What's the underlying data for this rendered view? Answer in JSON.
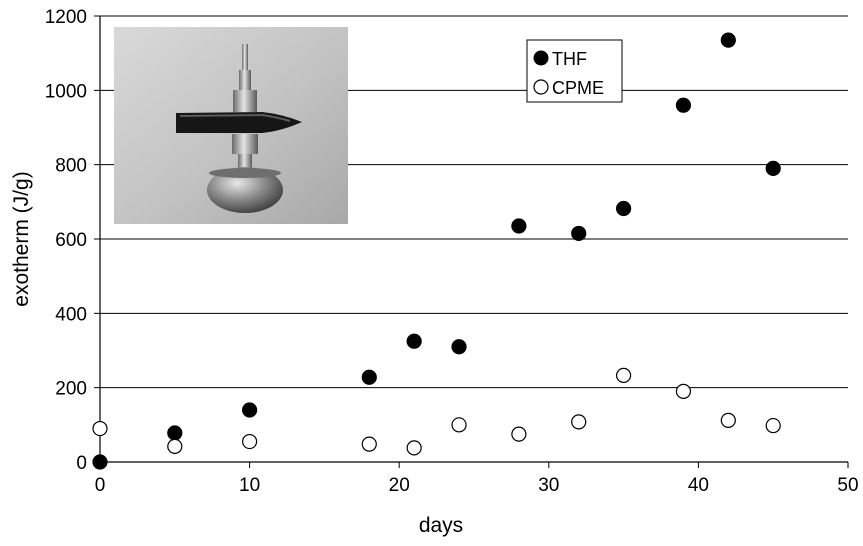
{
  "chart_data": {
    "type": "scatter",
    "title": "",
    "xlabel": "days",
    "ylabel": "exotherm (J/g)",
    "xlim": [
      0,
      50
    ],
    "ylim": [
      0,
      1200
    ],
    "xticks": [
      0,
      10,
      20,
      30,
      40,
      50
    ],
    "yticks": [
      0,
      200,
      400,
      600,
      800,
      1000,
      1200
    ],
    "grid": "horizontal",
    "legend_position": "top-right",
    "series": [
      {
        "name": "THF",
        "marker": "filled-circle",
        "color": "#000000",
        "x": [
          0,
          5,
          10,
          18,
          21,
          24,
          28,
          32,
          35,
          39,
          42,
          45
        ],
        "y": [
          0,
          78,
          140,
          228,
          325,
          310,
          635,
          615,
          682,
          960,
          1135,
          790
        ]
      },
      {
        "name": "CPME",
        "marker": "open-circle",
        "color": "#000000",
        "x": [
          0,
          5,
          10,
          18,
          21,
          24,
          28,
          32,
          35,
          39,
          42,
          45
        ],
        "y": [
          90,
          42,
          55,
          48,
          38,
          100,
          75,
          108,
          233,
          190,
          112,
          98
        ]
      }
    ],
    "inset_image": "metal pressure vessel photo"
  }
}
